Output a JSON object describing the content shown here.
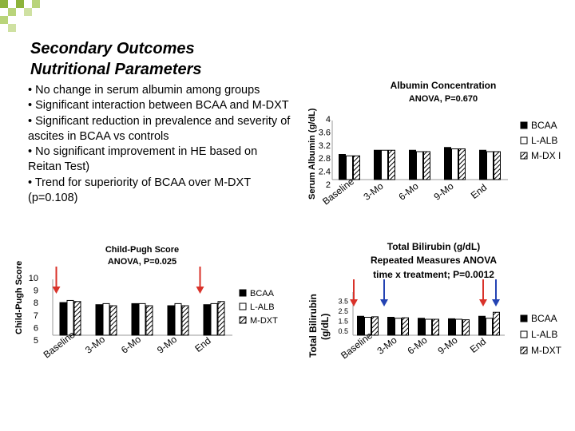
{
  "slide": {
    "title_line1": "Secondary Outcomes",
    "title_line2": "Nutritional Parameters",
    "bullets": [
      "• No change in serum albumin among groups",
      "• Significant interaction between BCAA and M-DXT",
      "• Significant reduction in prevalence and severity of ascites in BCAA vs controls",
      "• No significant improvement in HE based on Reitan Test)",
      "• Trend for superiority of BCAA over M-DXT (p=0.108)"
    ],
    "accent_color": "#8db33a"
  },
  "chart_data": [
    {
      "id": "albumin",
      "type": "bar",
      "title": "Albumin Concentration",
      "subtitle": "ANOVA, P=0.670",
      "ylabel": "Serum Albumin (g/dL)",
      "xlabel": "",
      "categories": [
        "Baseline",
        "3-Mo",
        "6-Mo",
        "9-Mo",
        "End"
      ],
      "yticks": [
        "4",
        "3.6",
        "3.2",
        "2.8",
        "2.4",
        "2"
      ],
      "ylim": [
        2,
        4
      ],
      "series": [
        {
          "name": "BCAA",
          "values": [
            2.9,
            3.05,
            3.05,
            3.15,
            3.05
          ]
        },
        {
          "name": "L-ALB",
          "values": [
            2.85,
            3.05,
            3.0,
            3.1,
            3.0
          ]
        },
        {
          "name": "M-DX I",
          "values": [
            2.85,
            3.05,
            3.0,
            3.1,
            3.0
          ]
        }
      ],
      "legend": "right",
      "grid": false
    },
    {
      "id": "childpugh",
      "type": "bar",
      "title": "Child-Pugh Score",
      "subtitle": "ANOVA, P=0.025",
      "ylabel": "Child-Pugh Score",
      "xlabel": "",
      "categories": [
        "Baseline",
        "3-Mo",
        "6-Mo",
        "9-Mo",
        "End"
      ],
      "yticks": [
        "10",
        "9",
        "8",
        "7",
        "6",
        "5"
      ],
      "ylim": [
        5,
        10
      ],
      "series": [
        {
          "name": "BCAA",
          "values": [
            8.1,
            7.9,
            8.0,
            7.8,
            7.9
          ]
        },
        {
          "name": "L-ALB",
          "values": [
            8.3,
            8.0,
            8.0,
            8.0,
            8.0
          ]
        },
        {
          "name": "M-DXT",
          "values": [
            8.2,
            7.8,
            7.8,
            7.8,
            8.2
          ]
        }
      ],
      "arrows": [
        {
          "category": "Baseline",
          "color": "#d9322a"
        },
        {
          "category": "End",
          "color": "#d9322a"
        }
      ],
      "legend": "right",
      "grid": false
    },
    {
      "id": "bilirubin",
      "type": "bar",
      "title": "Total Bilirubin (g/dL)",
      "subtitle_line1": "Repeated Measures ANOVA",
      "subtitle_line2": "time x treatment; P=0.0012",
      "ylabel_line1": "Total Bilirubin",
      "ylabel_line2": "(g/dL)",
      "xlabel": "",
      "categories": [
        "Baseline",
        "3-Mo",
        "6-Mo",
        "9-Mo",
        "End"
      ],
      "yticks": [
        "3.5",
        "2.5",
        "1.5",
        "0.5"
      ],
      "ylim": [
        0,
        4
      ],
      "series": [
        {
          "name": "BCAA",
          "values": [
            1.9,
            1.8,
            1.7,
            1.65,
            1.9
          ]
        },
        {
          "name": "L-ALB",
          "values": [
            1.8,
            1.7,
            1.6,
            1.6,
            1.7
          ]
        },
        {
          "name": "M-DXT",
          "values": [
            1.85,
            1.75,
            1.6,
            1.55,
            2.3
          ]
        }
      ],
      "arrows": [
        {
          "category": "Baseline",
          "color": "#d9322a"
        },
        {
          "category": "3-Mo",
          "color": "#2443b3"
        },
        {
          "category": "End",
          "color": "#d9322a"
        },
        {
          "category": "End",
          "color": "#2443b3"
        }
      ],
      "legend": "right",
      "grid": false
    }
  ]
}
